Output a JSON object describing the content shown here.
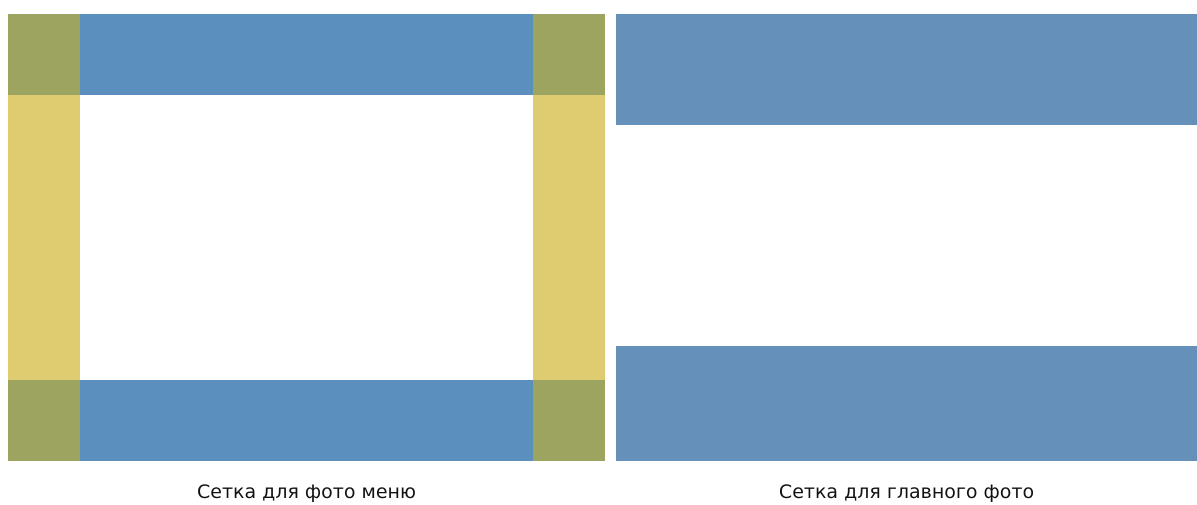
{
  "colors": {
    "menu_band": "#5a8fbe",
    "menu_corner": "#9ca45f",
    "menu_side": "#dfcc71",
    "main_band": "#6490ba",
    "background": "#ffffff"
  },
  "captions": {
    "menu_grid": "Сетка для фото меню",
    "main_grid": "Сетка для главного фото"
  }
}
